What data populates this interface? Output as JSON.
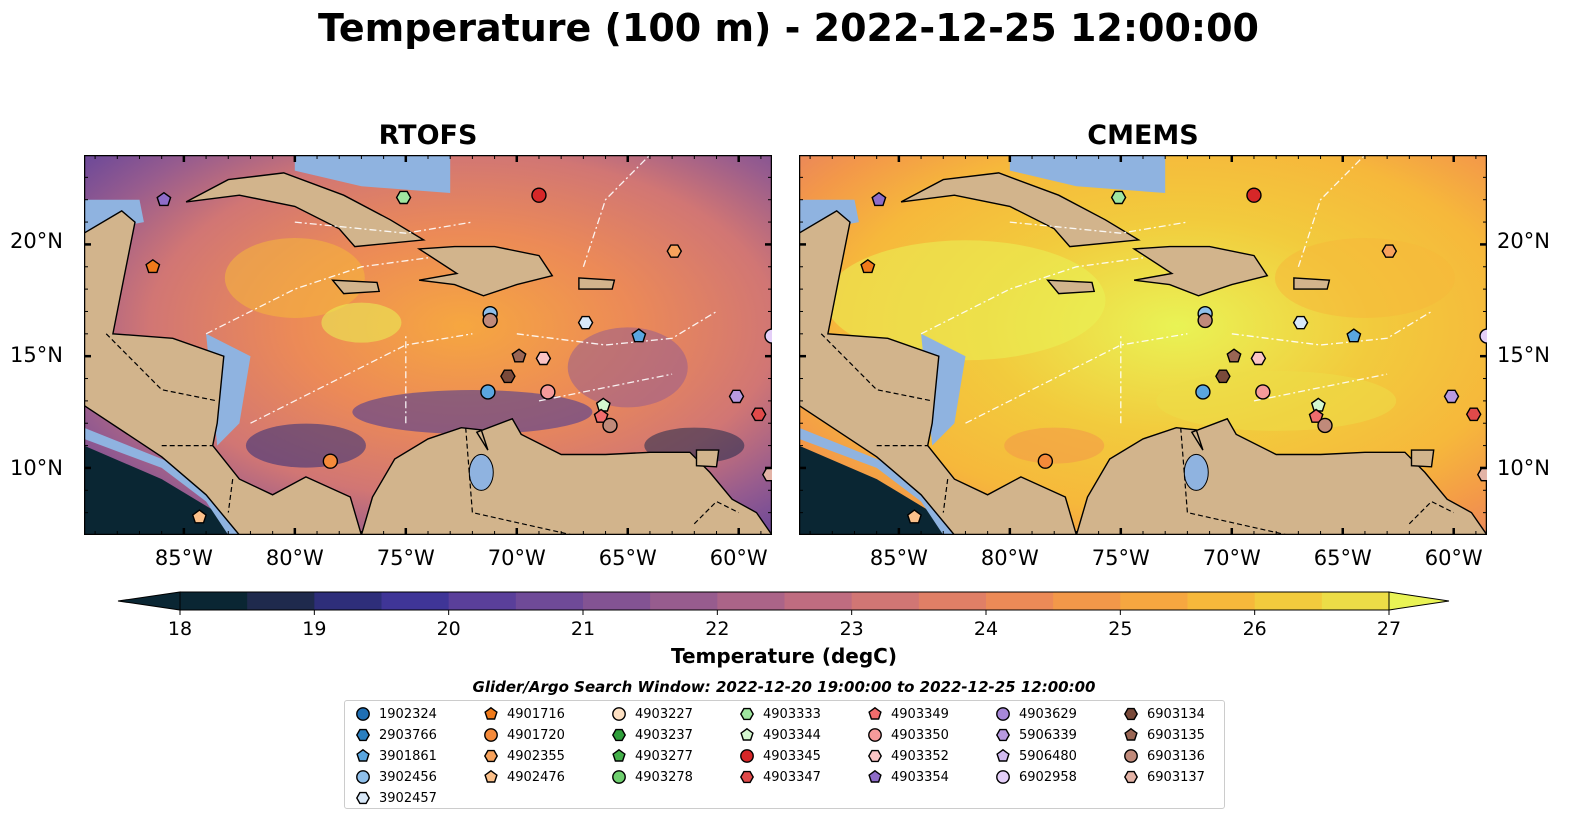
{
  "chart_data": {
    "type": "heatmap",
    "title": "Temperature (100 m) - 2022-12-25 12:00:00",
    "panels": [
      {
        "title": "RTOFS"
      },
      {
        "title": "CMEMS"
      }
    ],
    "x_ticks": [
      "85°W",
      "80°W",
      "75°W",
      "70°W",
      "65°W",
      "60°W"
    ],
    "x_tick_values": [
      -85,
      -80,
      -75,
      -70,
      -65,
      -60
    ],
    "y_ticks": [
      "20°N",
      "15°N",
      "10°N"
    ],
    "y_tick_values": [
      20,
      15,
      10
    ],
    "xlim": [
      -89.5,
      -58.5
    ],
    "ylim": [
      7,
      24
    ],
    "colorbar": {
      "label": "Temperature (degC)",
      "ticks": [
        18,
        19,
        20,
        21,
        22,
        23,
        24,
        25,
        26,
        27
      ],
      "range": [
        18,
        27
      ],
      "extend": "both",
      "colors": [
        "#0a2633",
        "#1f2a4d",
        "#2e2e7a",
        "#3f3597",
        "#5a3f9a",
        "#6f4a98",
        "#835393",
        "#975c8e",
        "#ab6488",
        "#bf6c80",
        "#d17674",
        "#e07f66",
        "#ec8a57",
        "#f39849",
        "#f6a740",
        "#f6b83b",
        "#f2cb3d",
        "#ecdd47",
        "#e9f355"
      ]
    },
    "legend_title": "Glider/Argo Search Window: 2022-12-20 19:00:00 to 2022-12-25 12:00:00",
    "floats": [
      {
        "id": "1902324",
        "marker": "circle",
        "color": "#1f6fb4",
        "lon": null,
        "lat": null
      },
      {
        "id": "2903766",
        "marker": "hexagon",
        "color": "#2a7fc0",
        "lon": null,
        "lat": null
      },
      {
        "id": "3901861",
        "marker": "pentagon",
        "color": "#5aa6e0",
        "lon": -64.5,
        "lat": 15.9
      },
      {
        "id": "3902456",
        "marker": "circle",
        "color": "#8fbfea",
        "lon": -71.2,
        "lat": 16.9
      },
      {
        "id": "3902457",
        "marker": "hexagon",
        "color": "#d8e8f8",
        "lon": -66.9,
        "lat": 16.5
      },
      {
        "id": "4901716",
        "marker": "pentagon",
        "color": "#f07a1a",
        "lon": -86.4,
        "lat": 19.0
      },
      {
        "id": "4901720",
        "marker": "circle",
        "color": "#f58a3a",
        "lon": -78.4,
        "lat": 10.3
      },
      {
        "id": "4902355",
        "marker": "hexagon",
        "color": "#f7a25c",
        "lon": -62.9,
        "lat": 19.7
      },
      {
        "id": "4902476",
        "marker": "pentagon",
        "color": "#fbc08a",
        "lon": -84.3,
        "lat": 7.8
      },
      {
        "id": "4903227",
        "marker": "circle",
        "color": "#fde0c2",
        "lon": null,
        "lat": null
      },
      {
        "id": "4903237",
        "marker": "hexagon",
        "color": "#2e9e3a",
        "lon": null,
        "lat": null
      },
      {
        "id": "4903277",
        "marker": "pentagon",
        "color": "#44b04a",
        "lon": null,
        "lat": null
      },
      {
        "id": "4903278",
        "marker": "circle",
        "color": "#6fcf6f",
        "lon": null,
        "lat": null
      },
      {
        "id": "4903333",
        "marker": "hexagon",
        "color": "#a0e6a0",
        "lon": -75.1,
        "lat": 22.1
      },
      {
        "id": "4903344",
        "marker": "pentagon",
        "color": "#d4f7cf",
        "lon": -66.1,
        "lat": 12.8
      },
      {
        "id": "4903345",
        "marker": "circle",
        "color": "#d62728",
        "lon": -69.0,
        "lat": 22.2
      },
      {
        "id": "4903347",
        "marker": "hexagon",
        "color": "#e04a4a",
        "lon": -59.1,
        "lat": 12.4
      },
      {
        "id": "4903349",
        "marker": "pentagon",
        "color": "#f06c6c",
        "lon": -66.2,
        "lat": 12.3
      },
      {
        "id": "4903350",
        "marker": "circle",
        "color": "#f59a9a",
        "lon": -68.6,
        "lat": 13.4
      },
      {
        "id": "4903352",
        "marker": "hexagon",
        "color": "#fbc4c4",
        "lon": -68.8,
        "lat": 14.9
      },
      {
        "id": "4903354",
        "marker": "pentagon",
        "color": "#8e6cc8",
        "lon": -85.9,
        "lat": 22.0
      },
      {
        "id": "4903629",
        "marker": "circle",
        "color": "#a788d8",
        "lon": null,
        "lat": null
      },
      {
        "id": "5906339",
        "marker": "hexagon",
        "color": "#b89ae0",
        "lon": -60.1,
        "lat": 13.2
      },
      {
        "id": "5906480",
        "marker": "pentagon",
        "color": "#d2bbf0",
        "lon": null,
        "lat": null
      },
      {
        "id": "6902958",
        "marker": "circle",
        "color": "#e4cff8",
        "lon": -58.5,
        "lat": 15.9
      },
      {
        "id": "6903134",
        "marker": "hexagon",
        "color": "#7a4a3a",
        "lon": -70.4,
        "lat": 14.1
      },
      {
        "id": "6903135",
        "marker": "pentagon",
        "color": "#9a6654",
        "lon": -69.9,
        "lat": 15.0
      },
      {
        "id": "6903136",
        "marker": "circle",
        "color": "#c08a7a",
        "lon": -71.2,
        "lat": 16.6
      },
      {
        "id": "6903137",
        "marker": "hexagon",
        "color": "#e3b3a6",
        "lon": -58.6,
        "lat": 9.7
      }
    ],
    "panel_extra_markers": [
      {
        "id": "3902456-b",
        "marker": "circle",
        "color": "#5aa6e0",
        "lon": -71.3,
        "lat": 13.4
      },
      {
        "id": "6903136-b",
        "marker": "circle",
        "color": "#c08a7a",
        "lon": -65.8,
        "lat": 11.9
      }
    ],
    "land_color": "#d2b48c",
    "shelf_color": "#8fb3e0"
  }
}
